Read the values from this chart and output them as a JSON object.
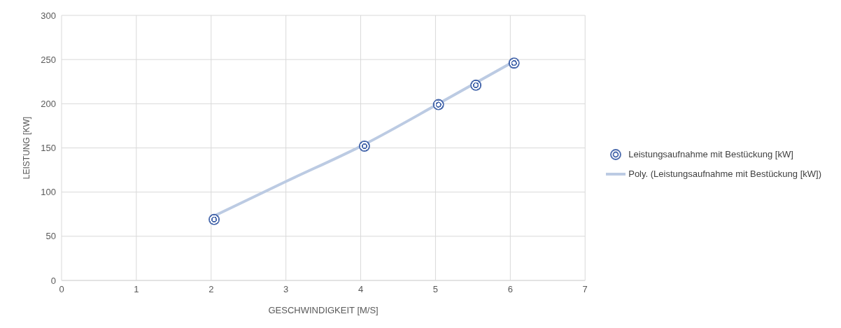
{
  "chart_data": {
    "type": "scatter",
    "xlabel": "GESCHWINDIGKEIT [M/S]",
    "ylabel": "LEISTUNG [KW]",
    "xlim": [
      0,
      7
    ],
    "xticks": [
      0,
      1,
      2,
      3,
      4,
      5,
      6,
      7
    ],
    "ylim": [
      0,
      300
    ],
    "yticks": [
      0,
      50,
      100,
      150,
      200,
      250,
      300
    ],
    "grid": true,
    "legend": "right",
    "series": [
      {
        "name": "Leistungsaufnahme mit Bestückung [kW]",
        "type": "scatter",
        "marker": "circle",
        "color": "#4a6aad",
        "x": [
          2.04,
          4.05,
          5.04,
          5.54,
          6.05
        ],
        "values": [
          69,
          152,
          199,
          221,
          246
        ]
      },
      {
        "name": "Poly. (Leistungsaufnahme mit Bestückung [kW])",
        "type": "line",
        "marker": "none",
        "color": "#bccbe3",
        "x": [
          2.04,
          3,
          4.05,
          5.04,
          6.05
        ],
        "values": [
          73,
          112,
          154,
          200,
          248
        ]
      }
    ]
  }
}
